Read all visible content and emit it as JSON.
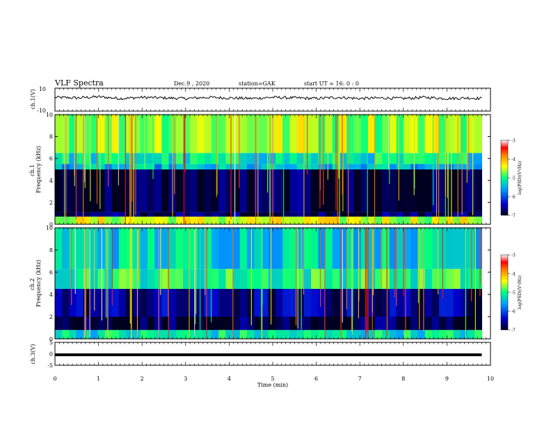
{
  "header": {
    "title": "VLF Spectra",
    "date": "Dec.9 , 2020",
    "station": "station=GAK",
    "start": "start UT = 16: 0 : 0"
  },
  "colors": {
    "background": "#ffffff",
    "spectrogram_low": "#000033",
    "spectrogram_mid": "#00a0ff",
    "spectrogram_high": "#ff0000",
    "ch3_line": "#000000"
  },
  "chart_data": [
    {
      "type": "line",
      "panel": "ch1-waveform",
      "ylabel": "ch.1(V)",
      "ylim": [
        -10,
        10
      ],
      "yticks": [
        "10",
        "-10"
      ],
      "x": [
        0,
        0.5,
        1,
        1.5,
        2,
        2.5,
        3,
        3.5,
        4,
        4.5,
        5,
        5.5,
        6,
        6.5,
        7,
        7.5,
        8,
        8.5,
        9,
        9.5,
        9.8
      ],
      "values": [
        2,
        1.5,
        2.5,
        1,
        2,
        1.5,
        1,
        2,
        1.5,
        1,
        2,
        1.5,
        1,
        2,
        1,
        1.5,
        1,
        2,
        1,
        1.5,
        1
      ]
    },
    {
      "type": "heatmap",
      "panel": "ch1-spectrogram",
      "ylabel": "ch.1\nFrequency (kHz)",
      "ylim": [
        0,
        10
      ],
      "yticks": [
        "10",
        "8",
        "6",
        "4",
        "2",
        "0"
      ],
      "colorbar_label": "log(PSD)(V²/Hz)",
      "colorbar_range": [
        -7,
        -3
      ],
      "colorbar_ticks": [
        "-3",
        "-4",
        "-5",
        "-6",
        "-7"
      ],
      "bands_khz": [
        {
          "from": 0.0,
          "to": 0.7,
          "level": -4.5
        },
        {
          "from": 0.7,
          "to": 1.1,
          "level": -6.8
        },
        {
          "from": 1.1,
          "to": 5.0,
          "level": -6.9
        },
        {
          "from": 5.0,
          "to": 5.5,
          "level": -5.5
        },
        {
          "from": 5.5,
          "to": 6.5,
          "level": -5.2
        },
        {
          "from": 6.5,
          "to": 10.0,
          "level": -4.6
        }
      ]
    },
    {
      "type": "heatmap",
      "panel": "ch2-spectrogram",
      "ylabel": "ch.2\nFrequency (kHz)",
      "ylim": [
        0,
        10
      ],
      "yticks": [
        "10",
        "8",
        "6",
        "4",
        "2",
        "0"
      ],
      "colorbar_label": "log(PSD)(V²/Hz)",
      "colorbar_range": [
        -7,
        -3
      ],
      "colorbar_ticks": [
        "-3",
        "-4",
        "-5",
        "-6",
        "-7"
      ],
      "bands_khz": [
        {
          "from": 0.0,
          "to": 0.8,
          "level": -5.2
        },
        {
          "from": 0.8,
          "to": 2.0,
          "level": -6.9
        },
        {
          "from": 2.0,
          "to": 4.5,
          "level": -6.6
        },
        {
          "from": 4.5,
          "to": 6.3,
          "level": -5.0
        },
        {
          "from": 6.3,
          "to": 10.0,
          "level": -5.3
        }
      ]
    },
    {
      "type": "line",
      "panel": "ch3-waveform",
      "ylabel": "ch.3(V)",
      "xlabel": "Time (min)",
      "ylim": [
        -5,
        5
      ],
      "yticks": [
        "5",
        "0",
        "-5"
      ],
      "xlim": [
        0,
        10
      ],
      "xticks": [
        "0",
        "1",
        "2",
        "3",
        "4",
        "5",
        "6",
        "7",
        "8",
        "9",
        "10"
      ],
      "x": [
        0,
        9.8
      ],
      "values": [
        -0.4,
        -0.4
      ]
    }
  ]
}
